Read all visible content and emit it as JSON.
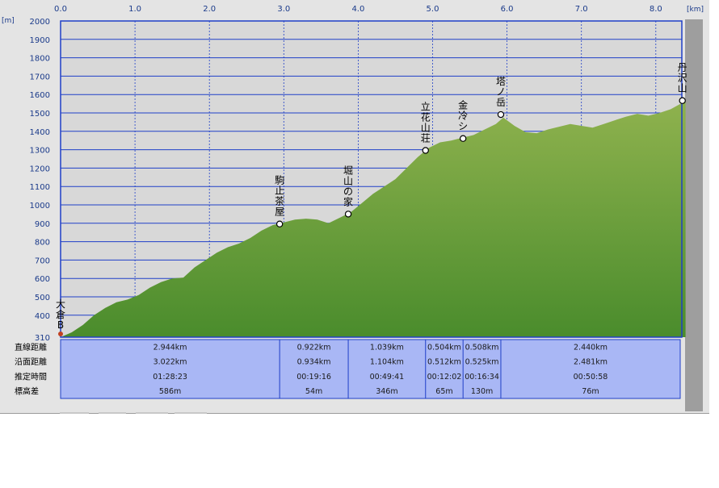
{
  "axis_units": {
    "x": "[km]",
    "y": "[m]"
  },
  "row_labels": [
    "直線距離",
    "沿面距離",
    "推定時間",
    "標高差"
  ],
  "colors": {
    "plot_bg": "#d8d8d8",
    "grid": "#1f3fc8",
    "area_top": "#8fb24e",
    "area_bottom": "#4a8c2c",
    "table_bg": "#a9b7f5",
    "table_line": "#1f3fc8",
    "axis_text": "#1a3a8a"
  },
  "chart_data": {
    "type": "area",
    "title": "",
    "xlabel": "[km]",
    "ylabel": "[m]",
    "xlim": [
      0,
      8.4
    ],
    "ylim": [
      310,
      2000
    ],
    "x_ticks": [
      "0.0",
      "1.0",
      "2.0",
      "3.0",
      "4.0",
      "5.0",
      "6.0",
      "7.0",
      "8.0"
    ],
    "y_ticks": [
      "2000",
      "1900",
      "1800",
      "1700",
      "1600",
      "1500",
      "1400",
      "1300",
      "1200",
      "1100",
      "1000",
      "900",
      "800",
      "700",
      "600",
      "500",
      "400",
      "310"
    ],
    "grid": true,
    "profile": {
      "x": [
        0.0,
        0.15,
        0.3,
        0.45,
        0.6,
        0.75,
        0.9,
        1.05,
        1.2,
        1.35,
        1.5,
        1.65,
        1.8,
        1.95,
        2.1,
        2.25,
        2.4,
        2.55,
        2.7,
        2.85,
        3.0,
        3.15,
        3.3,
        3.45,
        3.6,
        3.75,
        3.9,
        4.05,
        4.2,
        4.35,
        4.5,
        4.65,
        4.8,
        4.95,
        5.1,
        5.25,
        5.4,
        5.55,
        5.7,
        5.85,
        5.95,
        6.1,
        6.25,
        6.4,
        6.55,
        6.7,
        6.85,
        7.0,
        7.15,
        7.3,
        7.45,
        7.6,
        7.75,
        7.9,
        8.05,
        8.2,
        8.4
      ],
      "y": [
        310,
        330,
        360,
        400,
        440,
        470,
        485,
        510,
        550,
        580,
        600,
        605,
        660,
        700,
        740,
        770,
        790,
        820,
        860,
        890,
        905,
        920,
        925,
        920,
        900,
        930,
        960,
        1010,
        1060,
        1100,
        1140,
        1200,
        1260,
        1310,
        1340,
        1350,
        1365,
        1380,
        1410,
        1440,
        1475,
        1430,
        1395,
        1390,
        1410,
        1425,
        1440,
        1430,
        1420,
        1440,
        1460,
        1480,
        1495,
        1485,
        1500,
        1520,
        1565
      ]
    },
    "points": [
      {
        "name": "大倉B",
        "x": 0.0,
        "y": 310
      },
      {
        "name": "駒止茶屋",
        "x": 2.944,
        "y": 896
      },
      {
        "name": "堀山の家",
        "x": 3.866,
        "y": 950
      },
      {
        "name": "立花山荘",
        "x": 4.905,
        "y": 1296
      },
      {
        "name": "金冷シ",
        "x": 5.409,
        "y": 1361
      },
      {
        "name": "塔ノ岳",
        "x": 5.917,
        "y": 1491
      },
      {
        "name": "丹沢山",
        "x": 8.357,
        "y": 1567
      }
    ],
    "segments": [
      {
        "straight": "2.944km",
        "surface": "3.022km",
        "time": "01:28:23",
        "elev_diff": "586m"
      },
      {
        "straight": "0.922km",
        "surface": "0.934km",
        "time": "00:19:16",
        "elev_diff": "54m"
      },
      {
        "straight": "1.039km",
        "surface": "1.104km",
        "time": "00:49:41",
        "elev_diff": "346m"
      },
      {
        "straight": "0.504km",
        "surface": "0.512km",
        "time": "00:12:02",
        "elev_diff": "65m"
      },
      {
        "straight": "0.508km",
        "surface": "0.525km",
        "time": "00:16:34",
        "elev_diff": "130m"
      },
      {
        "straight": "2.440km",
        "surface": "2.481km",
        "time": "00:50:58",
        "elev_diff": "76m"
      }
    ]
  }
}
